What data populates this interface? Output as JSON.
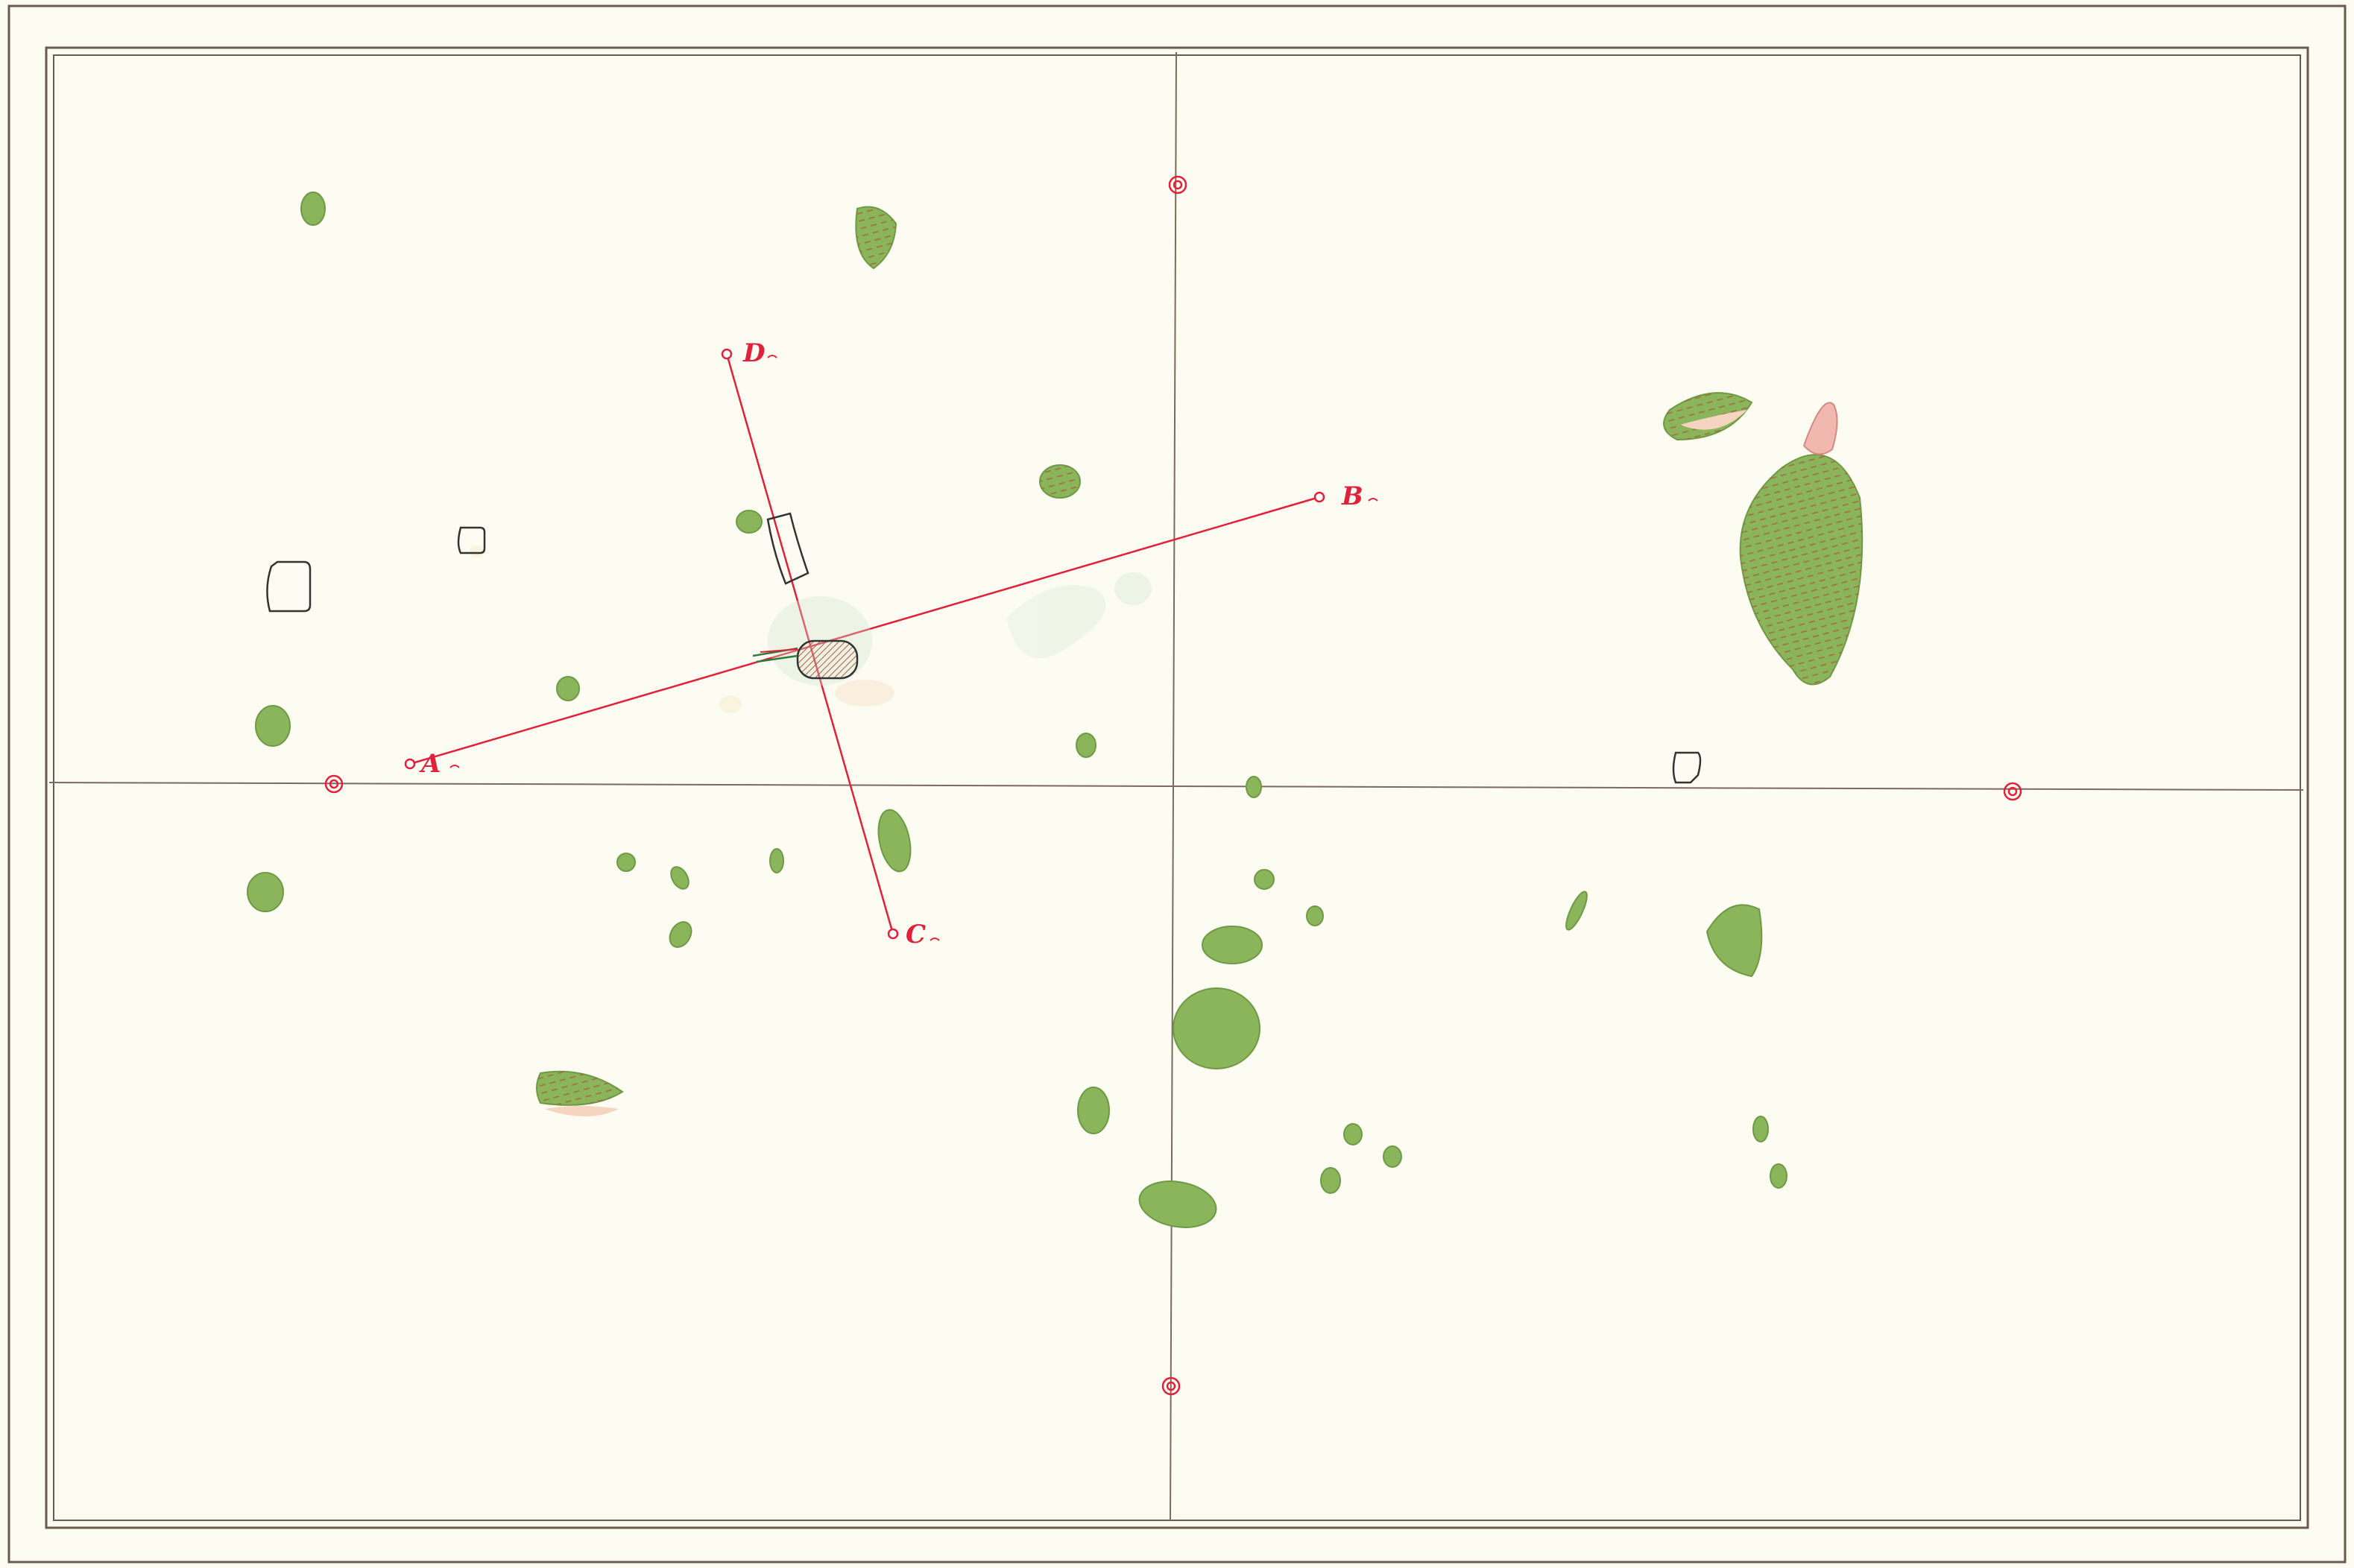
{
  "map": {
    "survey_points": [
      {
        "id": "A",
        "label": "A"
      },
      {
        "id": "B",
        "label": "B"
      },
      {
        "id": "C",
        "label": "C"
      },
      {
        "id": "D",
        "label": "D"
      }
    ],
    "colors": {
      "paper": "#fdfcf3",
      "frame": "#6b5a4e",
      "axis_lines": "#7a6a60",
      "survey_lines": "#e0213a",
      "green_fill": "#8ab55a",
      "green_edge": "#6f9a45",
      "rust_hatch": "#b85a3c",
      "pink": "#f1b8b0",
      "building_outline": "#333333"
    },
    "features": {
      "green_patches": "green-patch",
      "buildings": "building-outline",
      "reference_markers": "double-circle-marker"
    }
  }
}
